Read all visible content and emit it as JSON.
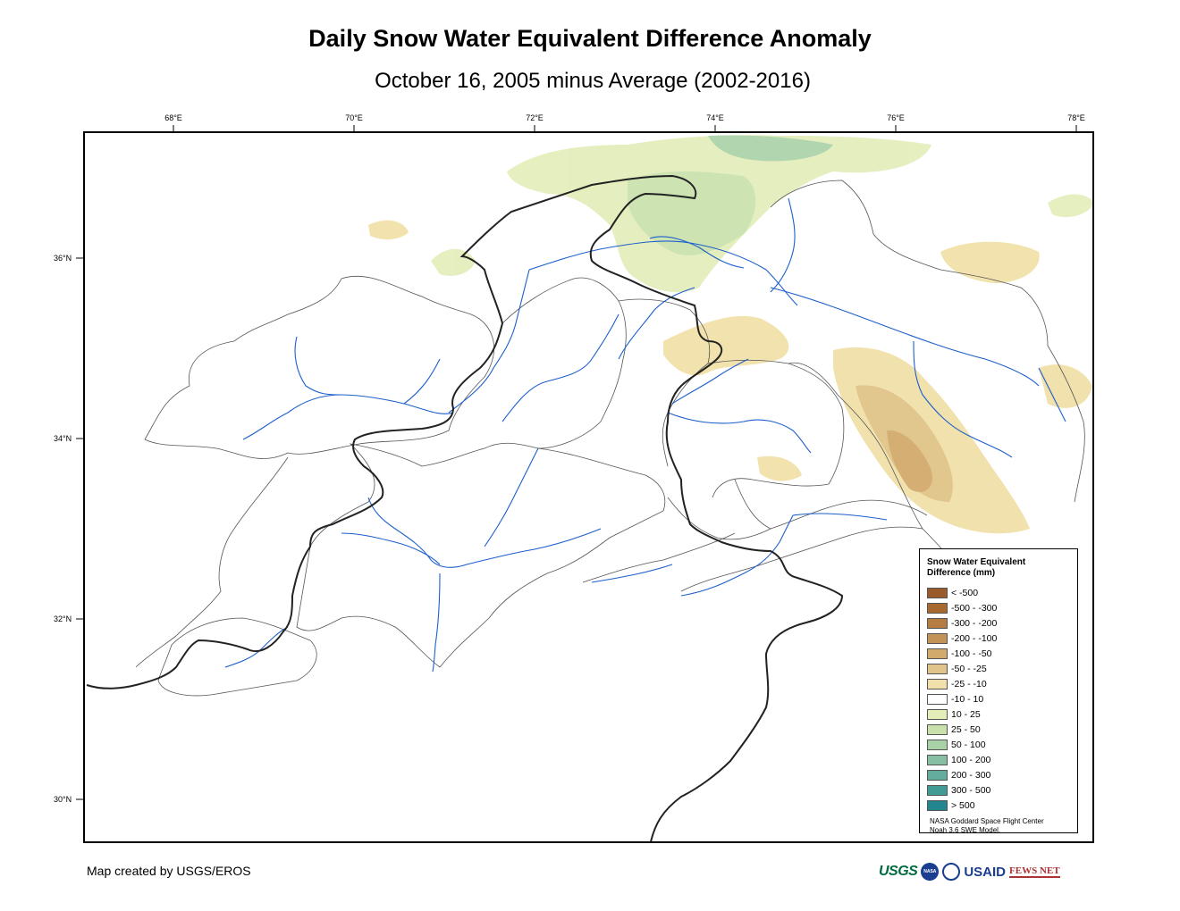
{
  "title": "Daily Snow Water Equivalent Difference Anomaly",
  "subtitle": "October 16, 2005 minus Average (2002-2016)",
  "axes": {
    "lon_labels": [
      "68°E",
      "70°E",
      "72°E",
      "74°E",
      "76°E",
      "78°E"
    ],
    "lat_labels": [
      "36°N",
      "34°N",
      "32°N",
      "30°N"
    ]
  },
  "legend": {
    "title": "Snow Water Equivalent Difference (mm)",
    "items": [
      {
        "label": "< -500",
        "color": "#9a5a2a"
      },
      {
        "label": "-500 - -300",
        "color": "#a8692f"
      },
      {
        "label": "-300 - -200",
        "color": "#b57d41"
      },
      {
        "label": "-200 - -100",
        "color": "#c39256"
      },
      {
        "label": "-100 - -50",
        "color": "#d2aa6c"
      },
      {
        "label": "-50 - -25",
        "color": "#e0c489"
      },
      {
        "label": "-25 - -10",
        "color": "#f1e0a9"
      },
      {
        "label": "-10 - 10",
        "color": "#ffffff"
      },
      {
        "label": "10 - 25",
        "color": "#e2edb8"
      },
      {
        "label": "25 - 50",
        "color": "#c8e0aa"
      },
      {
        "label": "50 - 100",
        "color": "#a9d1a7"
      },
      {
        "label": "100 - 200",
        "color": "#86bfa2"
      },
      {
        "label": "200 - 300",
        "color": "#64ad9c"
      },
      {
        "label": "300 - 500",
        "color": "#439b96"
      },
      {
        "label": "> 500",
        "color": "#23858f"
      }
    ],
    "credit_line1": "NASA Goddard Space Flight Center",
    "credit_line2": "Noah 3.6 SWE Model."
  },
  "map_credit": "Map created by USGS/EROS",
  "logos": {
    "usgs": "USGS",
    "nasa": "NASA",
    "usaid": "USAID",
    "fews": "FEWS NET"
  }
}
